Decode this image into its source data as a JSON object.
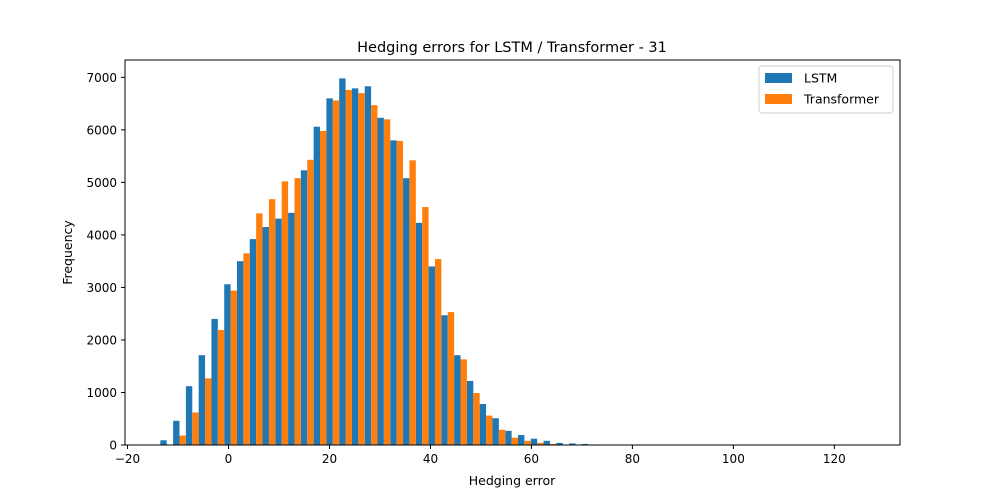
{
  "chart_data": {
    "type": "bar",
    "title": "Hedging errors for LSTM / Transformer - 31",
    "xlabel": "Hedging error",
    "ylabel": "Frequency",
    "xlim": [
      -20.5,
      133
    ],
    "ylim": [
      0,
      7330
    ],
    "xticks": [
      -20,
      0,
      20,
      40,
      60,
      80,
      100,
      120
    ],
    "yticks": [
      0,
      1000,
      2000,
      3000,
      4000,
      5000,
      6000,
      7000
    ],
    "legend_position": "top-right",
    "bin_start": -13.5,
    "bin_width": 2.53,
    "series": [
      {
        "name": "LSTM",
        "color": "#1f77b4",
        "values": [
          90,
          460,
          1120,
          1710,
          2400,
          3060,
          3500,
          3920,
          4150,
          4310,
          4420,
          5230,
          6060,
          6600,
          6980,
          6790,
          6830,
          6230,
          5800,
          5080,
          4230,
          3400,
          2470,
          1710,
          1220,
          780,
          510,
          270,
          190,
          120,
          80,
          40,
          30,
          20,
          10
        ]
      },
      {
        "name": "Transformer",
        "color": "#ff7f0e",
        "values": [
          10,
          180,
          620,
          1270,
          2190,
          2940,
          3650,
          4410,
          4680,
          5020,
          5080,
          5430,
          5980,
          6560,
          6760,
          6700,
          6470,
          6200,
          5790,
          5420,
          4530,
          3540,
          2530,
          1630,
          990,
          560,
          290,
          140,
          80,
          40,
          20,
          10,
          5,
          5,
          0
        ]
      }
    ]
  }
}
